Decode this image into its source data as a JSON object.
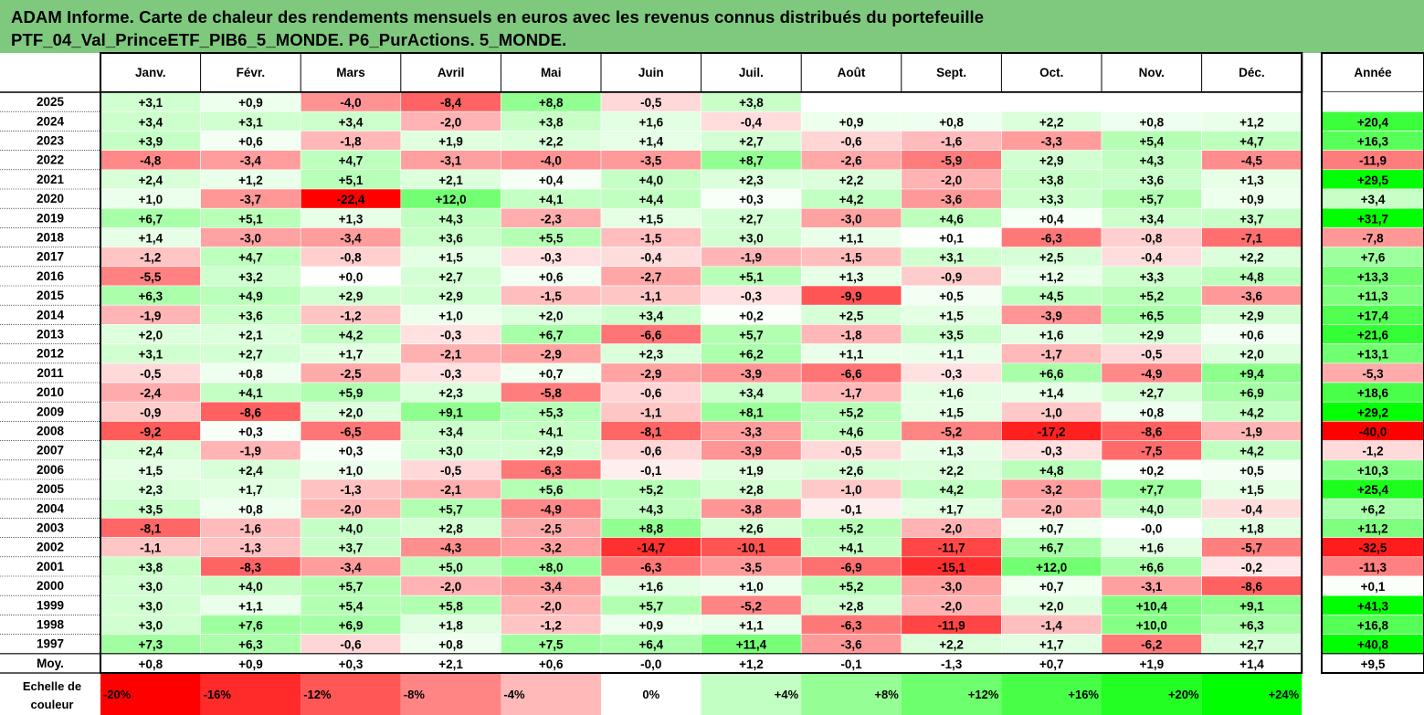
{
  "title": {
    "line1": "ADAM Informe. Carte de chaleur des rendements mensuels en euros avec les revenus connus distribués du portefeuille",
    "line2": "PTF_04_Val_PrinceETF_PIB6_5_MONDE. P6_PurActions. 5_MONDE."
  },
  "chart_data": {
    "type": "heatmap",
    "columns": [
      "Janv.",
      "Févr.",
      "Mars",
      "Avril",
      "Mai",
      "Juin",
      "Juil.",
      "Août",
      "Sept.",
      "Oct.",
      "Nov.",
      "Déc."
    ],
    "year_column": "Année",
    "rows": [
      {
        "label": "2025",
        "values": [
          "+3,1",
          "+0,9",
          "-4,0",
          "-8,4",
          "+8,8",
          "-0,5",
          "+3,8",
          "",
          "",
          "",
          "",
          ""
        ],
        "year": ""
      },
      {
        "label": "2024",
        "values": [
          "+3,4",
          "+3,1",
          "+3,4",
          "-2,0",
          "+3,8",
          "+1,6",
          "-0,4",
          "+0,9",
          "+0,8",
          "+2,2",
          "+0,8",
          "+1,2"
        ],
        "year": "+20,4"
      },
      {
        "label": "2023",
        "values": [
          "+3,9",
          "+0,6",
          "-1,8",
          "+1,9",
          "+2,2",
          "+1,4",
          "+2,7",
          "-0,6",
          "-1,6",
          "-3,3",
          "+5,4",
          "+4,7"
        ],
        "year": "+16,3"
      },
      {
        "label": "2022",
        "values": [
          "-4,8",
          "-3,4",
          "+4,7",
          "-3,1",
          "-4,0",
          "-3,5",
          "+8,7",
          "-2,6",
          "-5,9",
          "+2,9",
          "+4,3",
          "-4,5"
        ],
        "year": "-11,9"
      },
      {
        "label": "2021",
        "values": [
          "+2,4",
          "+1,2",
          "+5,1",
          "+2,1",
          "+0,4",
          "+4,0",
          "+2,3",
          "+2,2",
          "-2,0",
          "+3,8",
          "+3,6",
          "+1,3"
        ],
        "year": "+29,5"
      },
      {
        "label": "2020",
        "values": [
          "+1,0",
          "-3,7",
          "-22,4",
          "+12,0",
          "+4,1",
          "+4,4",
          "+0,3",
          "+4,2",
          "-3,6",
          "+3,3",
          "+5,7",
          "+0,9"
        ],
        "year": "+3,4"
      },
      {
        "label": "2019",
        "values": [
          "+6,7",
          "+5,1",
          "+1,3",
          "+4,3",
          "-2,3",
          "+1,5",
          "+2,7",
          "-3,0",
          "+4,6",
          "+0,4",
          "+3,4",
          "+3,7"
        ],
        "year": "+31,7"
      },
      {
        "label": "2018",
        "values": [
          "+1,4",
          "-3,0",
          "-3,4",
          "+3,6",
          "+5,5",
          "-1,5",
          "+3,0",
          "+1,1",
          "+0,1",
          "-6,3",
          "-0,8",
          "-7,1"
        ],
        "year": "-7,8"
      },
      {
        "label": "2017",
        "values": [
          "-1,2",
          "+4,7",
          "-0,8",
          "+1,5",
          "-0,3",
          "-0,4",
          "-1,9",
          "-1,5",
          "+3,1",
          "+2,5",
          "-0,4",
          "+2,2"
        ],
        "year": "+7,6"
      },
      {
        "label": "2016",
        "values": [
          "-5,5",
          "+3,2",
          "+0,0",
          "+2,7",
          "+0,6",
          "-2,7",
          "+5,1",
          "+1,3",
          "-0,9",
          "+1,2",
          "+3,3",
          "+4,8"
        ],
        "year": "+13,3"
      },
      {
        "label": "2015",
        "values": [
          "+6,3",
          "+4,9",
          "+2,9",
          "+2,9",
          "-1,5",
          "-1,1",
          "-0,3",
          "-9,9",
          "+0,5",
          "+4,5",
          "+5,2",
          "-3,6"
        ],
        "year": "+11,3"
      },
      {
        "label": "2014",
        "values": [
          "-1,9",
          "+3,6",
          "-1,2",
          "+1,0",
          "+2,0",
          "+3,4",
          "+0,2",
          "+2,5",
          "+1,5",
          "-3,9",
          "+6,5",
          "+2,9"
        ],
        "year": "+17,4"
      },
      {
        "label": "2013",
        "values": [
          "+2,0",
          "+2,1",
          "+4,2",
          "-0,3",
          "+6,7",
          "-6,6",
          "+5,7",
          "-1,8",
          "+3,5",
          "+1,6",
          "+2,9",
          "+0,6"
        ],
        "year": "+21,6"
      },
      {
        "label": "2012",
        "values": [
          "+3,1",
          "+2,7",
          "+1,7",
          "-2,1",
          "-2,9",
          "+2,3",
          "+6,2",
          "+1,1",
          "+1,1",
          "-1,7",
          "-0,5",
          "+2,0"
        ],
        "year": "+13,1"
      },
      {
        "label": "2011",
        "values": [
          "-0,5",
          "+0,8",
          "-2,5",
          "-0,3",
          "+0,7",
          "-2,9",
          "-3,9",
          "-6,6",
          "-0,3",
          "+6,6",
          "-4,9",
          "+9,4"
        ],
        "year": "-5,3"
      },
      {
        "label": "2010",
        "values": [
          "-2,4",
          "+4,1",
          "+5,9",
          "+2,3",
          "-5,8",
          "-0,6",
          "+3,4",
          "-1,7",
          "+1,6",
          "+1,4",
          "+2,7",
          "+6,9"
        ],
        "year": "+18,6"
      },
      {
        "label": "2009",
        "values": [
          "-0,9",
          "-8,6",
          "+2,0",
          "+9,1",
          "+5,3",
          "-1,1",
          "+8,1",
          "+5,2",
          "+1,5",
          "-1,0",
          "+0,8",
          "+4,2"
        ],
        "year": "+29,2"
      },
      {
        "label": "2008",
        "values": [
          "-9,2",
          "+0,3",
          "-6,5",
          "+3,4",
          "+4,1",
          "-8,1",
          "-3,3",
          "+4,6",
          "-5,2",
          "-17,2",
          "-8,6",
          "-1,9"
        ],
        "year": "-40,0"
      },
      {
        "label": "2007",
        "values": [
          "+2,4",
          "-1,9",
          "+0,3",
          "+3,0",
          "+2,9",
          "-0,6",
          "-3,9",
          "-0,5",
          "+1,3",
          "-0,3",
          "-7,5",
          "+4,2"
        ],
        "year": "-1,2"
      },
      {
        "label": "2006",
        "values": [
          "+1,5",
          "+2,4",
          "+1,0",
          "-0,5",
          "-6,3",
          "-0,1",
          "+1,9",
          "+2,6",
          "+2,2",
          "+4,8",
          "+0,2",
          "+0,5"
        ],
        "year": "+10,3"
      },
      {
        "label": "2005",
        "values": [
          "+2,3",
          "+1,7",
          "-1,3",
          "-2,1",
          "+5,6",
          "+5,2",
          "+2,8",
          "-1,0",
          "+4,2",
          "-3,2",
          "+7,7",
          "+1,5"
        ],
        "year": "+25,4"
      },
      {
        "label": "2004",
        "values": [
          "+3,5",
          "+0,8",
          "-2,0",
          "+5,7",
          "-4,9",
          "+4,3",
          "-3,8",
          "-0,1",
          "+1,7",
          "-2,0",
          "+4,0",
          "-0,4"
        ],
        "year": "+6,2"
      },
      {
        "label": "2003",
        "values": [
          "-8,1",
          "-1,6",
          "+4,0",
          "+2,8",
          "-2,5",
          "+8,8",
          "+2,6",
          "+5,2",
          "-2,0",
          "+0,7",
          "-0,0",
          "+1,8"
        ],
        "year": "+11,2"
      },
      {
        "label": "2002",
        "values": [
          "-1,1",
          "-1,3",
          "+3,7",
          "-4,3",
          "-3,2",
          "-14,7",
          "-10,1",
          "+4,1",
          "-11,7",
          "+6,7",
          "+1,6",
          "-5,7"
        ],
        "year": "-32,5"
      },
      {
        "label": "2001",
        "values": [
          "+3,8",
          "-8,3",
          "-3,4",
          "+5,0",
          "+8,0",
          "-6,3",
          "-3,5",
          "-6,9",
          "-15,1",
          "+12,0",
          "+6,6",
          "-0,2"
        ],
        "year": "-11,3"
      },
      {
        "label": "2000",
        "values": [
          "+3,0",
          "+4,0",
          "+5,7",
          "-2,0",
          "-3,4",
          "+1,6",
          "+1,0",
          "+5,2",
          "-3,0",
          "+0,7",
          "-3,1",
          "-8,6"
        ],
        "year": "+0,1"
      },
      {
        "label": "1999",
        "values": [
          "+3,0",
          "+1,1",
          "+5,4",
          "+5,8",
          "-2,0",
          "+5,7",
          "-5,2",
          "+2,8",
          "-2,0",
          "+2,0",
          "+10,4",
          "+9,1"
        ],
        "year": "+41,3"
      },
      {
        "label": "1998",
        "values": [
          "+3,0",
          "+7,6",
          "+6,9",
          "+1,8",
          "-1,2",
          "+0,9",
          "+1,1",
          "-6,3",
          "-11,9",
          "-1,4",
          "+10,0",
          "+6,3"
        ],
        "year": "+16,8"
      },
      {
        "label": "1997",
        "values": [
          "+7,3",
          "+6,3",
          "-0,6",
          "+0,8",
          "+7,5",
          "+6,4",
          "+11,4",
          "-3,6",
          "+2,2",
          "+1,7",
          "-6,2",
          "+2,7"
        ],
        "year": "+40,8"
      }
    ],
    "average": {
      "label": "Moy.",
      "values": [
        "+0,8",
        "+0,9",
        "+0,3",
        "+2,1",
        "+0,6",
        "-0,0",
        "+1,2",
        "-0,1",
        "-1,3",
        "+0,7",
        "+1,9",
        "+1,4"
      ],
      "year": "+9,5"
    },
    "scale": {
      "label_line1": "Echelle de",
      "label_line2": "couleur",
      "steps": [
        "-20%",
        "-16%",
        "-12%",
        "-8%",
        "-4%",
        "0%",
        "+4%",
        "+8%",
        "+12%",
        "+16%",
        "+20%",
        "+24%"
      ]
    },
    "colors": {
      "negative_max": "#ff0000",
      "neutral": "#ffffff",
      "positive_max": "#00ff00",
      "title_bar": "#7fc97f",
      "grid": "#000000"
    }
  }
}
